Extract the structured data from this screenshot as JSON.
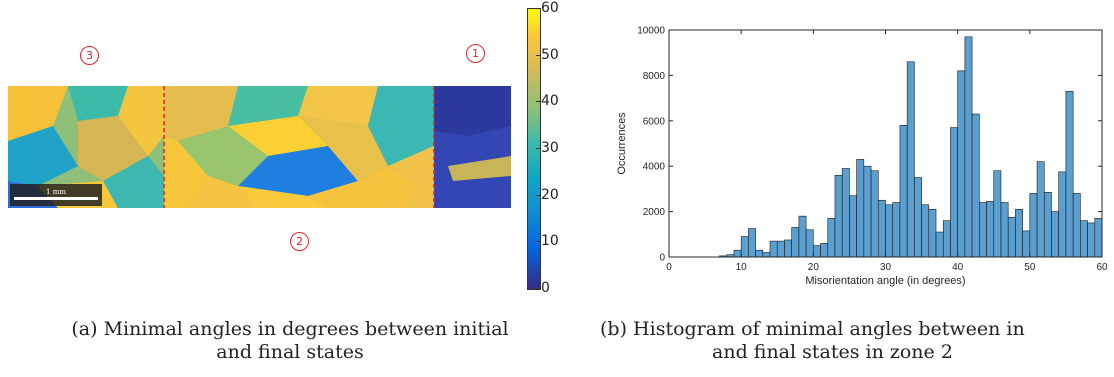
{
  "panel_a": {
    "zone_markers": [
      "1",
      "2",
      "3"
    ],
    "scale_bar_label": "1 mm",
    "colorbar": {
      "ticks": [
        60,
        50,
        40,
        30,
        20,
        10,
        0
      ],
      "range": [
        0,
        60
      ],
      "colormap": "parula"
    },
    "boundary_color": "#e0242a",
    "caption_label": "(a)",
    "caption_text_line1": "Minimal angles in degrees between initial",
    "caption_text_line2": "and final states"
  },
  "panel_b": {
    "caption_label": "(b)",
    "caption_text_line1": "Histogram of minimal angles between in",
    "caption_text_line2": "and final states in zone 2"
  },
  "chart_data": {
    "type": "bar",
    "xlabel": "Misorientation angle (in degrees)",
    "ylabel": "Occurrences",
    "xlim": [
      0,
      60
    ],
    "ylim": [
      0,
      10000
    ],
    "xticks": [
      0,
      10,
      20,
      30,
      40,
      50,
      60
    ],
    "yticks": [
      0,
      2000,
      4000,
      6000,
      8000,
      10000
    ],
    "bar_color": "#5b9fd0",
    "bin_width": 1,
    "bin_starts": [
      7,
      8,
      9,
      10,
      11,
      12,
      13,
      14,
      15,
      16,
      17,
      18,
      19,
      20,
      21,
      22,
      23,
      24,
      25,
      26,
      27,
      28,
      29,
      30,
      31,
      32,
      33,
      34,
      35,
      36,
      37,
      38,
      39,
      40,
      41,
      42,
      43,
      44,
      45,
      46,
      47,
      48,
      49,
      50,
      51,
      52,
      53,
      54,
      55,
      56,
      57,
      58,
      59
    ],
    "values": [
      50,
      100,
      300,
      900,
      1250,
      300,
      200,
      700,
      700,
      750,
      1300,
      1800,
      1200,
      500,
      600,
      1700,
      3600,
      3900,
      2700,
      4300,
      4000,
      3800,
      2500,
      2300,
      2400,
      5800,
      8600,
      3500,
      2300,
      2100,
      1100,
      1600,
      5700,
      8200,
      9700,
      6300,
      2400,
      2450,
      3800,
      2400,
      1750,
      2100,
      1150,
      2800,
      4200,
      2850,
      2000,
      3750,
      7300,
      2800,
      1600,
      1500,
      1700
    ]
  }
}
